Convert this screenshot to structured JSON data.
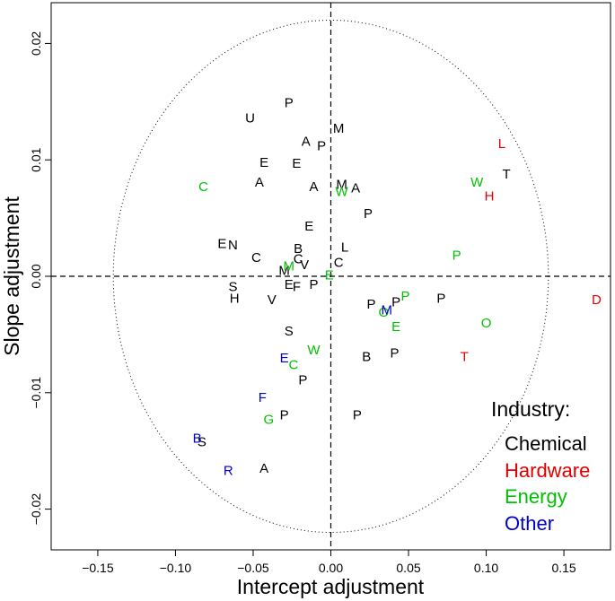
{
  "chart_data": {
    "type": "scatter",
    "xlabel": "Intercept adjustment",
    "ylabel": "Slope adjustment",
    "xlim": [
      -0.18,
      0.18
    ],
    "ylim": [
      -0.0235,
      0.0235
    ],
    "xticks": [
      -0.15,
      -0.1,
      -0.05,
      0.0,
      0.05,
      0.1,
      0.15
    ],
    "xtick_labels": [
      "−0.15",
      "−0.10",
      "−0.05",
      "0.00",
      "0.05",
      "0.10",
      "0.15"
    ],
    "yticks": [
      -0.02,
      -0.01,
      0.0,
      0.01,
      0.02
    ],
    "ytick_labels": [
      "−0.02",
      "−0.01",
      "0.00",
      "0.01",
      "0.02"
    ],
    "reference_lines": {
      "x": 0,
      "y": 0,
      "style": "dashed"
    },
    "ellipse": {
      "center_x": 0.0,
      "center_y": 0.0,
      "radius_x": 0.14,
      "radius_y": 0.022,
      "style": "dotted"
    },
    "legend": {
      "title": "Industry:",
      "placement": "bottom-right",
      "entries": [
        {
          "label": "Chemical",
          "color": "#000000"
        },
        {
          "label": "Hardware",
          "color": "#e00000"
        },
        {
          "label": "Energy",
          "color": "#00c000"
        },
        {
          "label": "Other",
          "color": "#0000c8"
        }
      ]
    },
    "series": [
      {
        "name": "Chemical",
        "color": "#000000",
        "points": [
          {
            "label": "P",
            "x": -0.027,
            "y": 0.0149
          },
          {
            "label": "U",
            "x": -0.052,
            "y": 0.0136
          },
          {
            "label": "A",
            "x": -0.016,
            "y": 0.0116
          },
          {
            "label": "P",
            "x": -0.006,
            "y": 0.0112
          },
          {
            "label": "M",
            "x": 0.005,
            "y": 0.0127
          },
          {
            "label": "E",
            "x": -0.043,
            "y": 0.0098
          },
          {
            "label": "E",
            "x": -0.022,
            "y": 0.0097
          },
          {
            "label": "A",
            "x": -0.046,
            "y": 0.0081
          },
          {
            "label": "A",
            "x": -0.011,
            "y": 0.0077
          },
          {
            "label": "M",
            "x": 0.007,
            "y": 0.0079
          },
          {
            "label": "A",
            "x": 0.016,
            "y": 0.0076
          },
          {
            "label": "P",
            "x": 0.024,
            "y": 0.0054
          },
          {
            "label": "T",
            "x": 0.113,
            "y": 0.0088
          },
          {
            "label": "E",
            "x": -0.014,
            "y": 0.0043
          },
          {
            "label": "E",
            "x": -0.07,
            "y": 0.0028
          },
          {
            "label": "N",
            "x": -0.063,
            "y": 0.0027
          },
          {
            "label": "B",
            "x": -0.021,
            "y": 0.0024
          },
          {
            "label": "L",
            "x": 0.009,
            "y": 0.0025
          },
          {
            "label": "C",
            "x": -0.048,
            "y": 0.0016
          },
          {
            "label": "C",
            "x": -0.021,
            "y": 0.0015
          },
          {
            "label": "V",
            "x": -0.017,
            "y": 0.001
          },
          {
            "label": "C",
            "x": 0.005,
            "y": 0.0012
          },
          {
            "label": "M",
            "x": -0.03,
            "y": 0.0005
          },
          {
            "label": "E",
            "x": -0.027,
            "y": -0.0007
          },
          {
            "label": "F",
            "x": -0.022,
            "y": -0.0009
          },
          {
            "label": "P",
            "x": -0.011,
            "y": -0.0007
          },
          {
            "label": "S",
            "x": -0.063,
            "y": -0.0009
          },
          {
            "label": "H",
            "x": -0.062,
            "y": -0.0019
          },
          {
            "label": "V",
            "x": -0.038,
            "y": -0.002
          },
          {
            "label": "P",
            "x": 0.026,
            "y": -0.0024
          },
          {
            "label": "P",
            "x": 0.042,
            "y": -0.0022
          },
          {
            "label": "P",
            "x": 0.071,
            "y": -0.0019
          },
          {
            "label": "S",
            "x": -0.027,
            "y": -0.0047
          },
          {
            "label": "B",
            "x": 0.023,
            "y": -0.0069
          },
          {
            "label": "P",
            "x": 0.041,
            "y": -0.0066
          },
          {
            "label": "P",
            "x": -0.018,
            "y": -0.0089
          },
          {
            "label": "P",
            "x": -0.03,
            "y": -0.0119
          },
          {
            "label": "P",
            "x": 0.017,
            "y": -0.0119
          },
          {
            "label": "S",
            "x": -0.083,
            "y": -0.0142
          },
          {
            "label": "A",
            "x": -0.043,
            "y": -0.0165
          }
        ]
      },
      {
        "name": "Hardware",
        "color": "#e00000",
        "points": [
          {
            "label": "L",
            "x": 0.11,
            "y": 0.0114
          },
          {
            "label": "H",
            "x": 0.102,
            "y": 0.0069
          },
          {
            "label": "D",
            "x": 0.171,
            "y": -0.002
          },
          {
            "label": "T",
            "x": 0.086,
            "y": -0.0069
          }
        ]
      },
      {
        "name": "Energy",
        "color": "#00c000",
        "points": [
          {
            "label": "C",
            "x": -0.082,
            "y": 0.0077
          },
          {
            "label": "W",
            "x": 0.007,
            "y": 0.0073
          },
          {
            "label": "W",
            "x": 0.094,
            "y": 0.0081
          },
          {
            "label": "P",
            "x": 0.081,
            "y": 0.0018
          },
          {
            "label": "M",
            "x": -0.027,
            "y": 0.0009
          },
          {
            "label": "E",
            "x": -0.001,
            "y": 0.0001
          },
          {
            "label": "P",
            "x": 0.048,
            "y": -0.0017
          },
          {
            "label": "O",
            "x": 0.034,
            "y": -0.0031
          },
          {
            "label": "E",
            "x": 0.042,
            "y": -0.0043
          },
          {
            "label": "O",
            "x": 0.1,
            "y": -0.004
          },
          {
            "label": "W",
            "x": -0.011,
            "y": -0.0063
          },
          {
            "label": "C",
            "x": -0.024,
            "y": -0.0076
          },
          {
            "label": "G",
            "x": -0.04,
            "y": -0.0123
          }
        ]
      },
      {
        "name": "Other",
        "color": "#0000c8",
        "points": [
          {
            "label": "M",
            "x": 0.036,
            "y": -0.0029
          },
          {
            "label": "E",
            "x": -0.03,
            "y": -0.007
          },
          {
            "label": "F",
            "x": -0.044,
            "y": -0.0104
          },
          {
            "label": "B",
            "x": -0.086,
            "y": -0.0139
          },
          {
            "label": "R",
            "x": -0.066,
            "y": -0.0167
          }
        ]
      }
    ]
  }
}
